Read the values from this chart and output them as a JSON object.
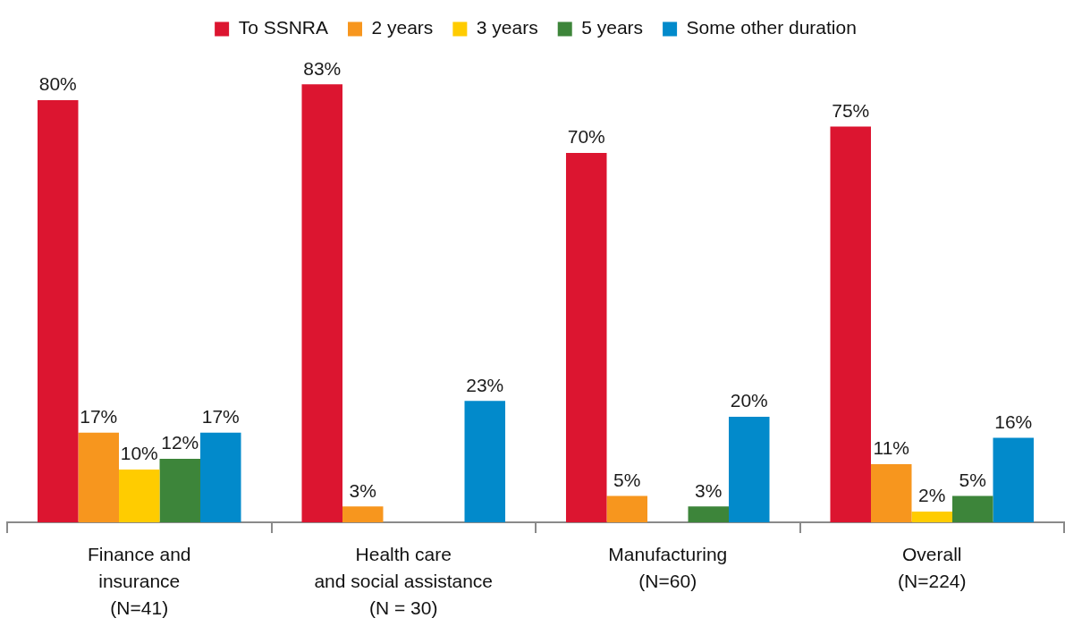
{
  "chart_data": {
    "type": "bar",
    "categories": [
      "Finance and\ninsurance\n(N=41)",
      "Health care\nand social assistance\n(N = 30)",
      "Manufacturing\n(N=60)",
      "Overall\n(N=224)"
    ],
    "series": [
      {
        "name": "To SSNRA",
        "color": "#dc1530",
        "values": [
          80,
          83,
          70,
          75
        ],
        "value_labels": [
          "80%",
          "83%",
          "70%",
          "75%"
        ]
      },
      {
        "name": "2 years",
        "color": "#f7961e",
        "values": [
          17,
          3,
          5,
          11
        ],
        "value_labels": [
          "17%",
          "3%",
          "5%",
          "11%"
        ]
      },
      {
        "name": "3 years",
        "color": "#ffcc00",
        "values": [
          10,
          null,
          null,
          2
        ],
        "value_labels": [
          "10%",
          null,
          null,
          "2%"
        ]
      },
      {
        "name": "5 years",
        "color": "#3d853a",
        "values": [
          12,
          null,
          3,
          5
        ],
        "value_labels": [
          "12%",
          null,
          "3%",
          "5%"
        ]
      },
      {
        "name": "Some other duration",
        "color": "#028acb",
        "values": [
          17,
          23,
          20,
          16
        ],
        "value_labels": [
          "17%",
          "23%",
          "20%",
          "16%"
        ]
      }
    ],
    "legend": "top",
    "tick_labels": "x",
    "grid": false
  }
}
